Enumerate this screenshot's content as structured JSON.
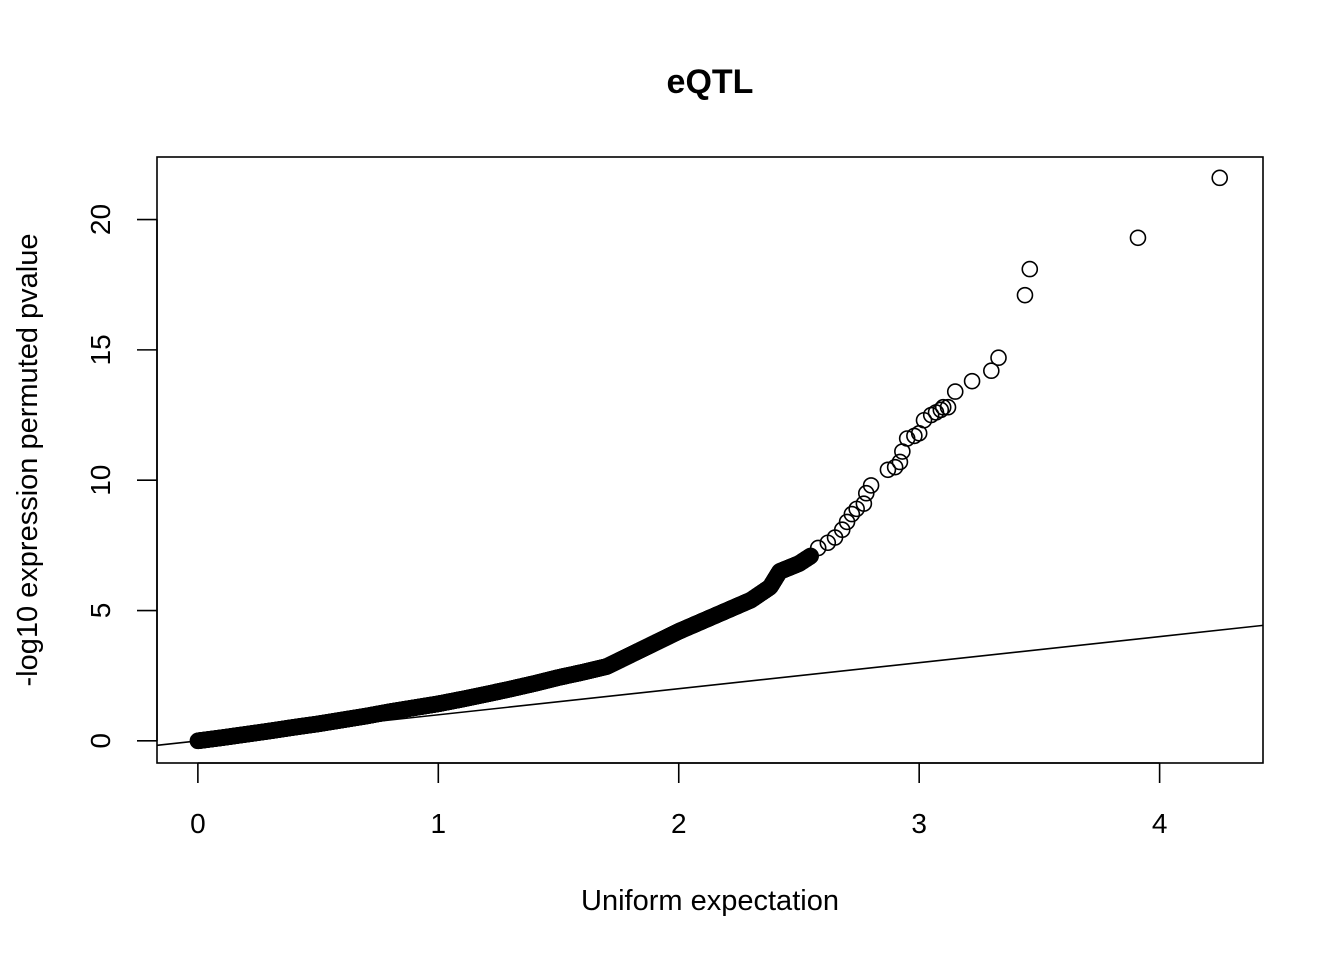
{
  "chart_data": {
    "type": "scatter",
    "title": "eQTL",
    "xlabel": "Uniform expectation",
    "ylabel": "-log10 expression permuted pvalue",
    "xlim": [
      -0.17,
      4.43
    ],
    "ylim": [
      -0.85,
      22.4
    ],
    "xticks": [
      0,
      1,
      2,
      3,
      4
    ],
    "yticks": [
      0,
      5,
      10,
      15,
      20
    ],
    "xtick_labels": [
      "0",
      "1",
      "2",
      "3",
      "4"
    ],
    "ytick_labels": [
      "0",
      "5",
      "10",
      "15",
      "20"
    ],
    "reference_line": {
      "intercept": 0,
      "slope": 1
    },
    "marker": "open-circle",
    "grid": false,
    "curve_points": [
      [
        0,
        0
      ],
      [
        0.1,
        0.12
      ],
      [
        0.2,
        0.25
      ],
      [
        0.3,
        0.38
      ],
      [
        0.4,
        0.52
      ],
      [
        0.5,
        0.65
      ],
      [
        0.6,
        0.8
      ],
      [
        0.7,
        0.95
      ],
      [
        0.8,
        1.12
      ],
      [
        0.9,
        1.27
      ],
      [
        1.0,
        1.42
      ],
      [
        1.1,
        1.6
      ],
      [
        1.2,
        1.79
      ],
      [
        1.3,
        1.99
      ],
      [
        1.4,
        2.2
      ],
      [
        1.5,
        2.43
      ],
      [
        1.6,
        2.63
      ],
      [
        1.7,
        2.85
      ],
      [
        1.8,
        3.3
      ],
      [
        1.9,
        3.75
      ],
      [
        2.0,
        4.2
      ],
      [
        2.1,
        4.6
      ],
      [
        2.2,
        5.0
      ],
      [
        2.3,
        5.4
      ],
      [
        2.38,
        5.9
      ],
      [
        2.42,
        6.5
      ],
      [
        2.5,
        6.8
      ],
      [
        2.55,
        7.1
      ]
    ],
    "tail_points": [
      [
        2.58,
        7.4
      ],
      [
        2.62,
        7.6
      ],
      [
        2.65,
        7.8
      ],
      [
        2.68,
        8.1
      ],
      [
        2.7,
        8.4
      ],
      [
        2.72,
        8.7
      ],
      [
        2.74,
        8.9
      ],
      [
        2.77,
        9.1
      ],
      [
        2.78,
        9.5
      ],
      [
        2.8,
        9.8
      ],
      [
        2.87,
        10.4
      ],
      [
        2.9,
        10.5
      ],
      [
        2.92,
        10.7
      ],
      [
        2.93,
        11.1
      ],
      [
        2.95,
        11.6
      ],
      [
        2.98,
        11.7
      ],
      [
        3.0,
        11.8
      ],
      [
        3.02,
        12.3
      ],
      [
        3.05,
        12.5
      ],
      [
        3.07,
        12.6
      ],
      [
        3.09,
        12.7
      ],
      [
        3.1,
        12.8
      ],
      [
        3.12,
        12.8
      ],
      [
        3.15,
        13.4
      ],
      [
        3.22,
        13.8
      ],
      [
        3.3,
        14.2
      ],
      [
        3.33,
        14.7
      ],
      [
        3.44,
        17.1
      ],
      [
        3.46,
        18.1
      ],
      [
        3.91,
        19.3
      ],
      [
        4.25,
        21.6
      ]
    ]
  }
}
